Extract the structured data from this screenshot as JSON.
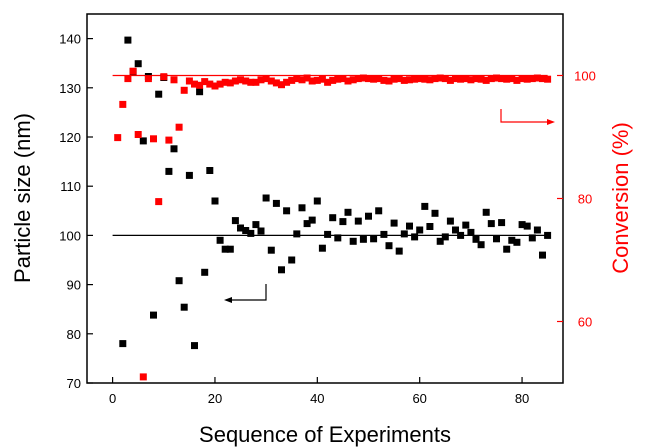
{
  "chart_data": {
    "type": "scatter",
    "xlabel": "Sequence of Experiments",
    "ylabel_left": "Particle size (nm)",
    "ylabel_right": "Conversion (%)",
    "xlim": [
      -5,
      88
    ],
    "ylim_left": [
      70,
      145
    ],
    "ylim_right": [
      50,
      110
    ],
    "x_ticks": [
      0,
      20,
      40,
      60,
      80
    ],
    "y_left_ticks": [
      70,
      80,
      90,
      100,
      110,
      120,
      130,
      140
    ],
    "y_right_ticks": [
      60,
      80,
      100
    ],
    "reference_lines": {
      "particle_size_target": 100,
      "conversion_target": 100
    },
    "colors": {
      "particle_size": "#000000",
      "conversion": "#ff0000"
    },
    "series": [
      {
        "axis": "left",
        "x": [
          2,
          3,
          4,
          5,
          6,
          7,
          8,
          9,
          10,
          11,
          12,
          13,
          14,
          15,
          16,
          17,
          18,
          19,
          20,
          21,
          22,
          23,
          24,
          25,
          26,
          27,
          28,
          29,
          30,
          31,
          32,
          33,
          34,
          35,
          36,
          37,
          38,
          39,
          40,
          41,
          42,
          43,
          44,
          45,
          46,
          47,
          48,
          49,
          50,
          51,
          52,
          53,
          54,
          55,
          56,
          57,
          58,
          59,
          60,
          61,
          62,
          63,
          64,
          65,
          66,
          67,
          68,
          69,
          70,
          71,
          72,
          73,
          74,
          75,
          76,
          77,
          78,
          79,
          80,
          81,
          82,
          83,
          84,
          85
        ],
        "y": [
          78,
          139.7,
          133.3,
          134.9,
          119.2,
          132.3,
          83.8,
          128.7,
          132.1,
          113,
          117.6,
          90.8,
          85.4,
          112.2,
          77.6,
          129.2,
          92.5,
          113.2,
          107,
          99,
          97.2,
          97.2,
          103,
          101.5,
          101,
          100.4,
          102.2,
          100.9,
          107.6,
          97,
          106.5,
          93,
          105,
          95,
          100.3,
          105.6,
          102.4,
          103.1,
          107,
          97.4,
          100.2,
          103.6,
          99.5,
          102.8,
          104.7,
          98.8,
          102.9,
          99.2,
          103.9,
          99.3,
          105,
          100.2,
          97.9,
          102.5,
          96.8,
          100.3,
          101.9,
          99.7,
          101.1,
          105.9,
          101.8,
          104.5,
          98.8,
          99.7,
          102.9,
          101.1,
          100,
          102.1,
          100.6,
          99.2,
          98.1,
          104.7,
          102.4,
          99.3,
          102.6,
          97.2,
          99,
          98.6,
          102.2,
          101.9,
          99.5,
          101.1,
          96,
          100
        ]
      },
      {
        "axis": "right",
        "x": [
          1,
          2,
          3,
          4,
          5,
          6,
          7,
          8,
          9,
          10,
          11,
          12,
          13,
          14,
          15,
          16,
          17,
          18,
          19,
          20,
          21,
          22,
          23,
          24,
          25,
          26,
          27,
          28,
          29,
          30,
          31,
          32,
          33,
          34,
          35,
          36,
          37,
          38,
          39,
          40,
          41,
          42,
          43,
          44,
          45,
          46,
          47,
          48,
          49,
          50,
          51,
          52,
          53,
          54,
          55,
          56,
          57,
          58,
          59,
          60,
          61,
          62,
          63,
          64,
          65,
          66,
          67,
          68,
          69,
          70,
          71,
          72,
          73,
          74,
          75,
          76,
          77,
          78,
          79,
          80,
          81,
          82,
          83,
          84,
          85
        ],
        "y": [
          89.9,
          95.3,
          99.5,
          100.7,
          90.4,
          51,
          99.5,
          89.7,
          79.5,
          99.8,
          89.5,
          99.3,
          91.6,
          97.6,
          99.1,
          98.6,
          98.4,
          99,
          98.6,
          98.3,
          98.6,
          98.9,
          98.8,
          99.1,
          99.3,
          99.1,
          98.9,
          98.9,
          99.3,
          99.5,
          99.1,
          98.8,
          98.5,
          98.9,
          99.2,
          99.5,
          99.3,
          99.6,
          99.1,
          99.2,
          99.4,
          98.9,
          99.2,
          99.4,
          99.5,
          99.1,
          99.3,
          99.5,
          99.6,
          99.5,
          99.4,
          99.5,
          99.2,
          99.1,
          99.4,
          99.5,
          99.2,
          99.3,
          99.4,
          99.5,
          99.4,
          99.3,
          99.5,
          99.6,
          99.5,
          99.2,
          99.5,
          99.4,
          99.5,
          99.3,
          99.5,
          99.4,
          99.2,
          99.5,
          99.6,
          99.5,
          99.4,
          99.5,
          99.2,
          99.5,
          99.4,
          99.5,
          99.6,
          99.5,
          99.4
        ]
      }
    ]
  }
}
